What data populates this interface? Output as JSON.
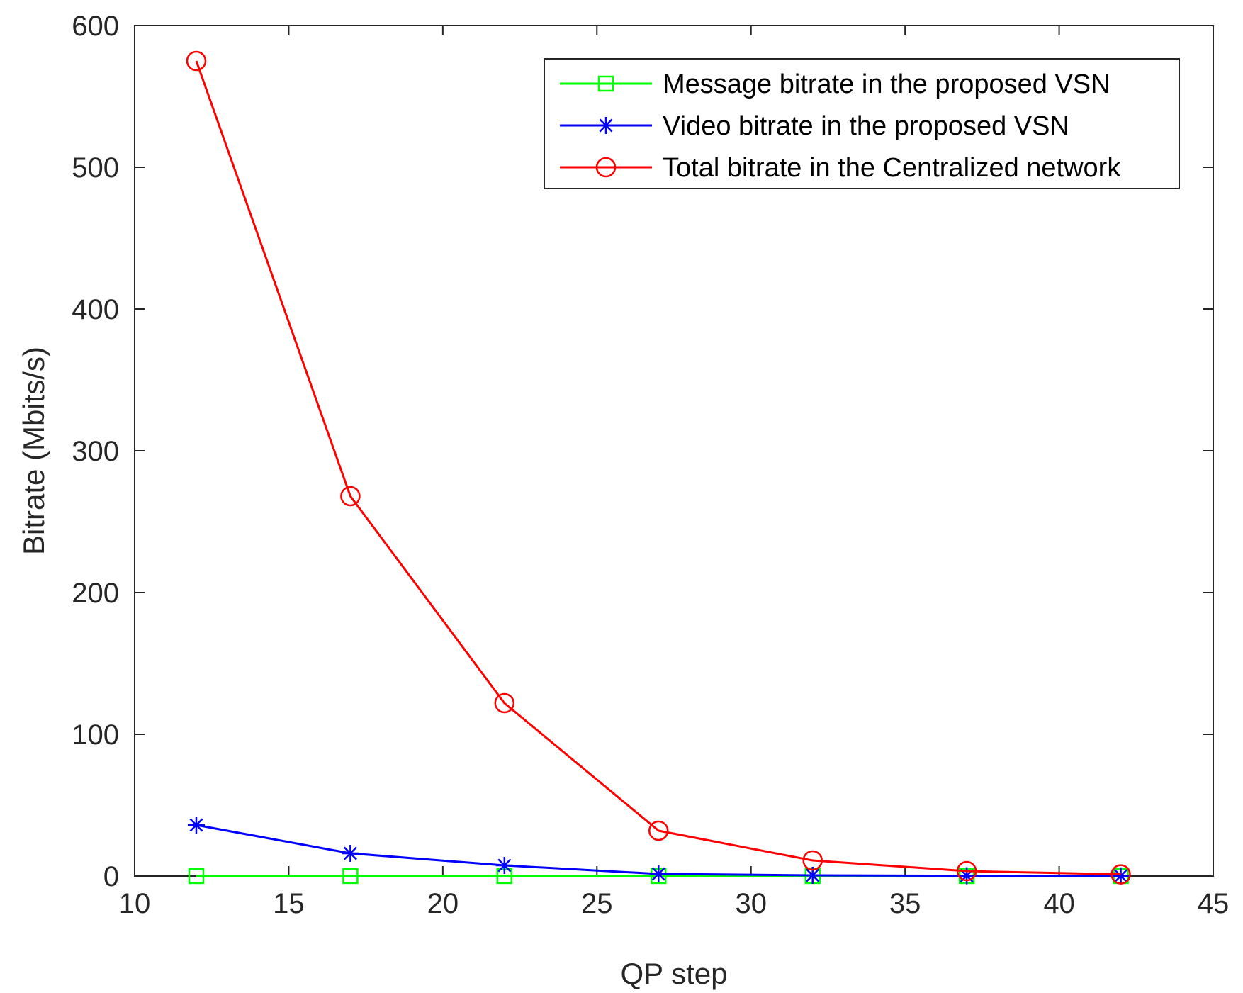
{
  "chart_data": {
    "type": "line",
    "title": "",
    "xlabel": "QP step",
    "ylabel": "Bitrate (Mbits/s)",
    "xlim": [
      10,
      45
    ],
    "ylim": [
      0,
      600
    ],
    "xticks": [
      10,
      15,
      20,
      25,
      30,
      35,
      40,
      45
    ],
    "yticks": [
      0,
      100,
      200,
      300,
      400,
      500,
      600
    ],
    "grid": false,
    "legend_position": "top-right",
    "x": [
      12,
      17,
      22,
      27,
      32,
      37,
      42
    ],
    "series": [
      {
        "name": "Message bitrate in the proposed VSN",
        "color": "#00ff00",
        "marker": "square",
        "values": [
          0.05,
          0.05,
          0.05,
          0.05,
          0.05,
          0.05,
          0.05
        ]
      },
      {
        "name": "Video bitrate in the proposed VSN",
        "color": "#0000ff",
        "marker": "asterisk",
        "values": [
          36,
          16,
          7.5,
          1.5,
          0.5,
          0.2,
          0.1
        ]
      },
      {
        "name": "Total bitrate in the Centralized network",
        "color": "#ff0000",
        "marker": "circle",
        "values": [
          575,
          268,
          122,
          32,
          11,
          3.5,
          1.2
        ]
      }
    ]
  }
}
